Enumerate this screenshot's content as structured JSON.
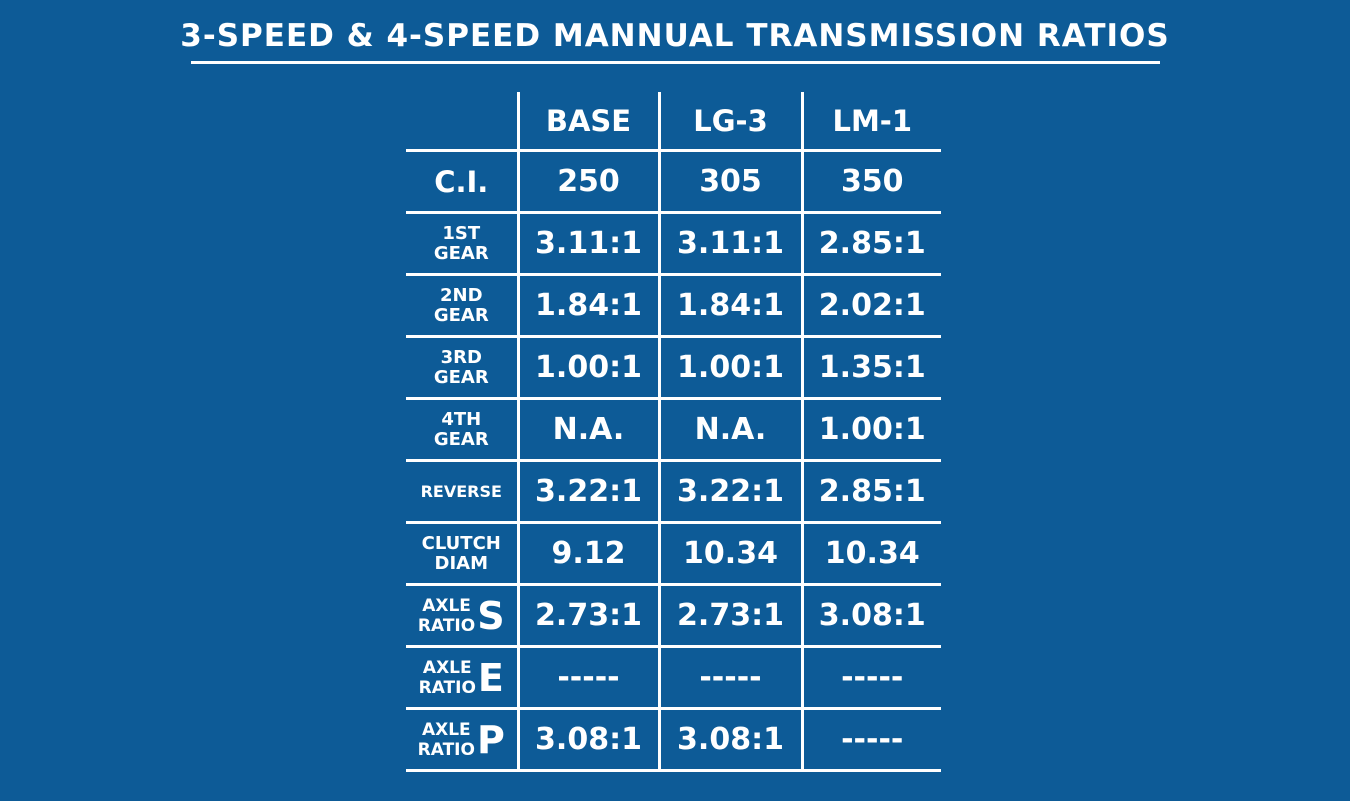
{
  "title": "3-SPEED & 4-SPEED MANNUAL TRANSMISSION RATIOS",
  "header": {
    "col1": "BASE",
    "col2": "LG-3",
    "col3": "LM-1"
  },
  "rows": {
    "ci": {
      "label": "C.I.",
      "v1": "250",
      "v2": "305",
      "v3": "350"
    },
    "gear1": {
      "l1": "1ST",
      "l2": "GEAR",
      "v1": "3.11:1",
      "v2": "3.11:1",
      "v3": "2.85:1"
    },
    "gear2": {
      "l1": "2ND",
      "l2": "GEAR",
      "v1": "1.84:1",
      "v2": "1.84:1",
      "v3": "2.02:1"
    },
    "gear3": {
      "l1": "3RD",
      "l2": "GEAR",
      "v1": "1.00:1",
      "v2": "1.00:1",
      "v3": "1.35:1"
    },
    "gear4": {
      "l1": "4TH",
      "l2": "GEAR",
      "v1": "N.A.",
      "v2": "N.A.",
      "v3": "1.00:1"
    },
    "reverse": {
      "label": "REVERSE",
      "v1": "3.22:1",
      "v2": "3.22:1",
      "v3": "2.85:1"
    },
    "clutch": {
      "l1": "CLUTCH",
      "l2": "DIAM",
      "v1": "9.12",
      "v2": "10.34",
      "v3": "10.34"
    },
    "axle_s": {
      "l1": "AXLE",
      "l2": "RATIO",
      "letter": "S",
      "v1": "2.73:1",
      "v2": "2.73:1",
      "v3": "3.08:1"
    },
    "axle_e": {
      "l1": "AXLE",
      "l2": "RATIO",
      "letter": "E",
      "v1": "-----",
      "v2": "-----",
      "v3": "-----"
    },
    "axle_p": {
      "l1": "AXLE",
      "l2": "RATIO",
      "letter": "P",
      "v1": "3.08:1",
      "v2": "3.08:1",
      "v3": "-----"
    }
  },
  "colors": {
    "background": "#0d5b97",
    "foreground": "#ffffff"
  }
}
